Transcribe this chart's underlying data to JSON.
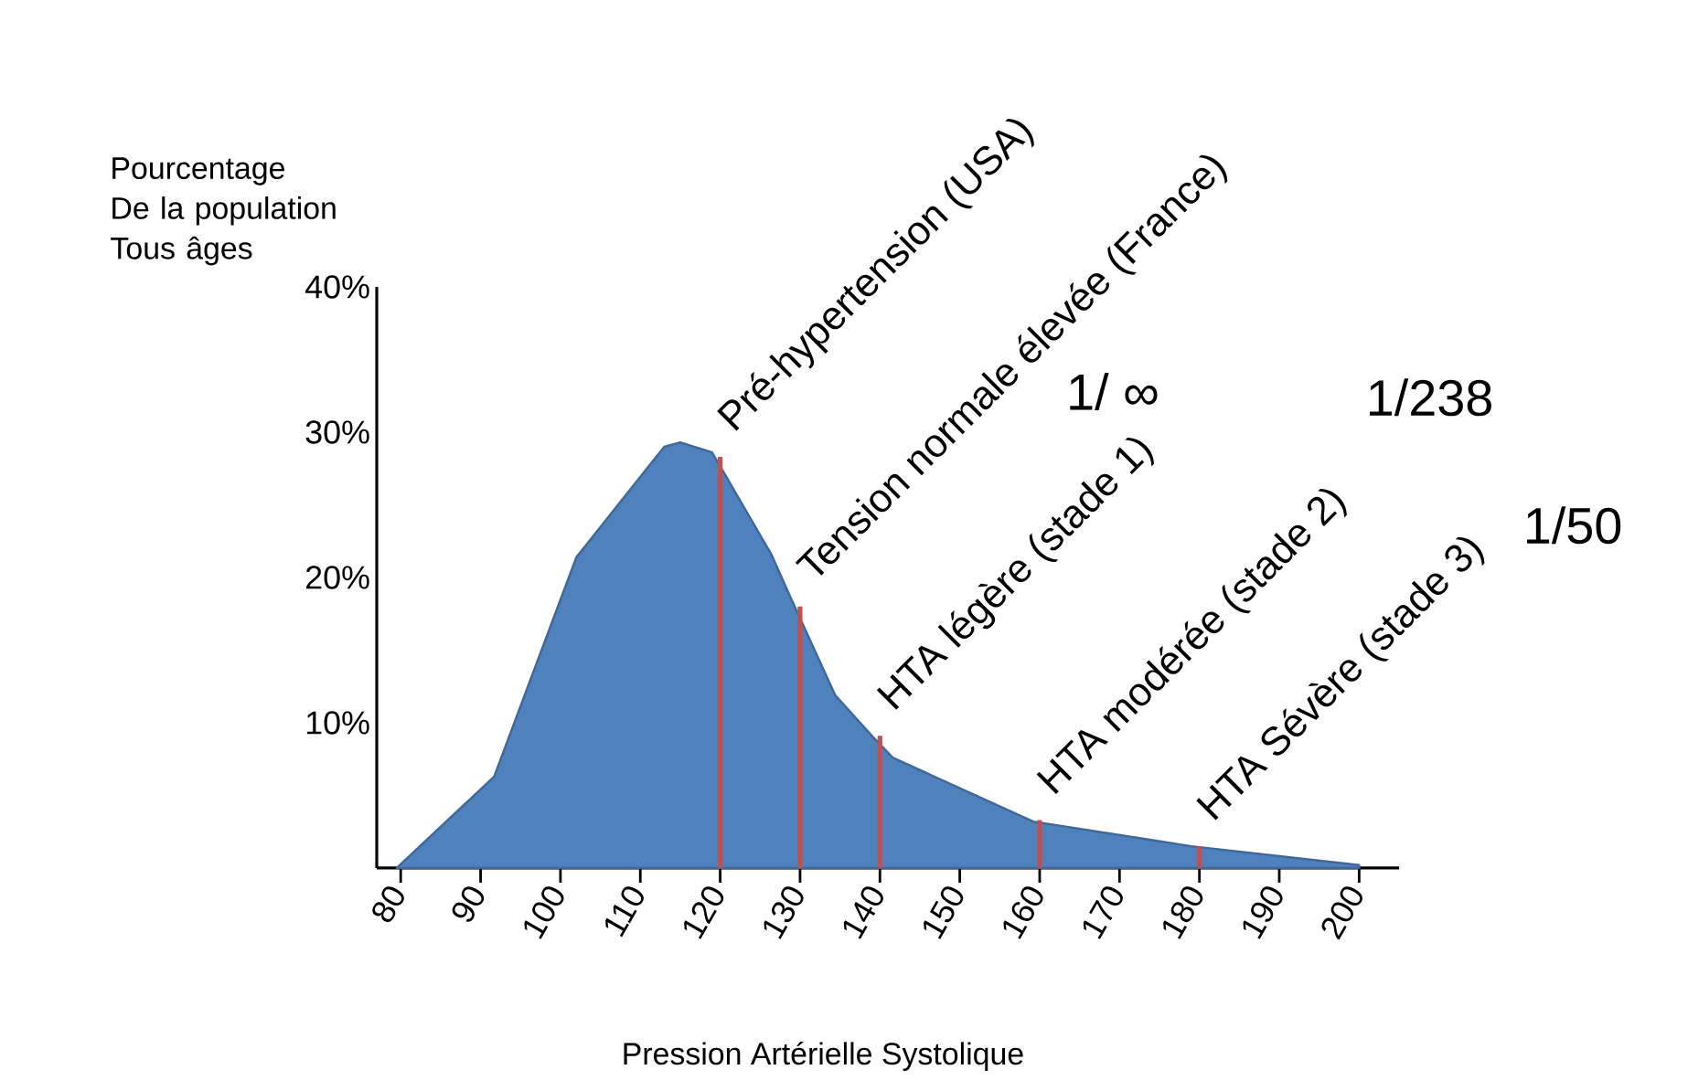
{
  "chart_data": {
    "type": "area",
    "ylabel": "Pourcentage De la population Tous âges",
    "xlabel": "Pression Artérielle Systolique",
    "series": [
      {
        "color": "#4f81bd",
        "x": [
          79.5,
          91.7,
          102,
          113,
          115,
          119,
          126.4,
          129,
          134.4,
          139,
          141.6,
          159.2,
          179,
          200
        ],
        "values": [
          0,
          6.3,
          21.4,
          29,
          29.3,
          28.6,
          21.6,
          18.4,
          11.9,
          9.1,
          7.6,
          3.2,
          1.5,
          0.2
        ]
      },
      {
        "type": "bar",
        "color": "#c0504d",
        "x": [
          120,
          130,
          140,
          160,
          180
        ],
        "values": [
          28.3,
          18,
          9.1,
          3.3,
          1.5
        ]
      }
    ],
    "xlim": [
      77,
      205
    ],
    "xticks": [
      80,
      90,
      100,
      110,
      120,
      130,
      140,
      150,
      160,
      170,
      180,
      190,
      200
    ],
    "ylim": [
      0,
      40
    ],
    "yticks": [
      {
        "value": 10,
        "label": "10%"
      },
      {
        "value": 20,
        "label": "20%"
      },
      {
        "value": 30,
        "label": "30%"
      },
      {
        "value": 40,
        "label": "40%"
      }
    ],
    "annotations": [
      {
        "text": "Pré-hypertension (USA)",
        "x": 120,
        "y": 28.3
      },
      {
        "text": "Tension normale élevée (France)",
        "x": 130,
        "y": 18
      },
      {
        "text": "HTA légère (stade 1)",
        "x": 140,
        "y": 9.1
      },
      {
        "text": "HTA modérée (stade 2)",
        "x": 160,
        "y": 3.3
      },
      {
        "text": "HTA Sévère (stade 3)",
        "x": 180,
        "y": 1.5
      },
      "1/ ∞",
      "1/238",
      "1/50"
    ]
  }
}
